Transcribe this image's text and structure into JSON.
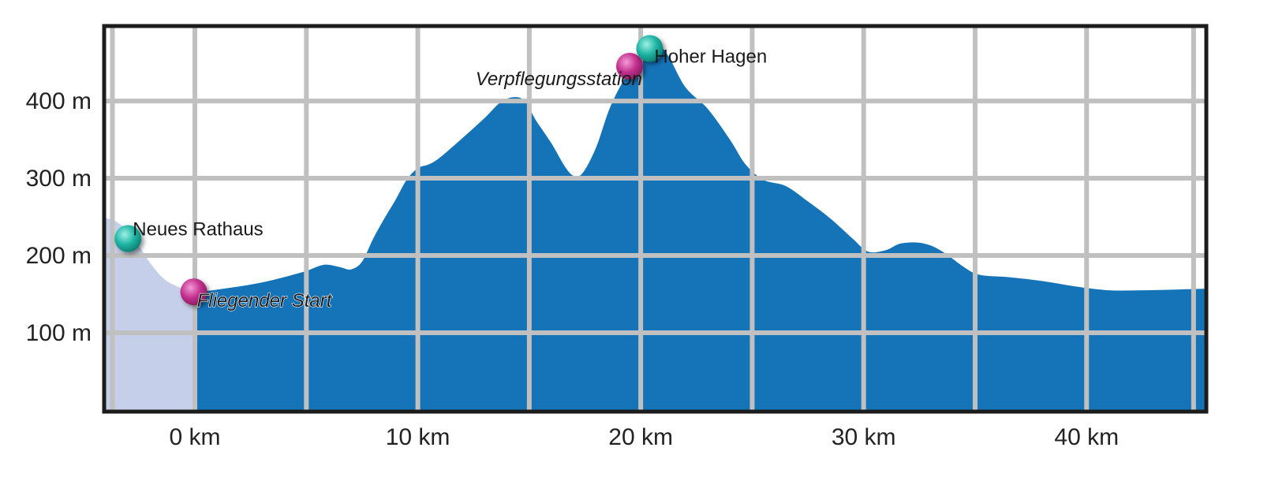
{
  "chart_data": {
    "type": "area",
    "title": "",
    "xlabel": "",
    "ylabel": "",
    "xlim": [
      -4,
      45.3
    ],
    "ylim": [
      0,
      495
    ],
    "grid": true,
    "legend": "none",
    "x_ticks": [
      {
        "value": 0,
        "label": "0 km"
      },
      {
        "value": 10,
        "label": "10 km"
      },
      {
        "value": 20,
        "label": "20 km"
      },
      {
        "value": 30,
        "label": "30 km"
      },
      {
        "value": 40,
        "label": "40 km"
      }
    ],
    "y_ticks": [
      {
        "value": 100,
        "label": "100 m"
      },
      {
        "value": 200,
        "label": "200 m"
      },
      {
        "value": 300,
        "label": "300 m"
      },
      {
        "value": 400,
        "label": "400 m"
      }
    ],
    "extra_vertical_gridlines": [
      -3.7,
      5,
      15,
      25,
      35,
      44.8
    ],
    "series": [
      {
        "role": "neutralized-section",
        "color": "#c5cfe9",
        "x_range": [
          -4,
          0
        ],
        "points": [
          {
            "x": -4,
            "y": 248
          },
          {
            "x": -3.6,
            "y": 245
          },
          {
            "x": -3,
            "y": 232
          },
          {
            "x": -2.5,
            "y": 212
          },
          {
            "x": -2,
            "y": 190
          },
          {
            "x": -1.4,
            "y": 170
          },
          {
            "x": -0.8,
            "y": 160
          },
          {
            "x": -0.3,
            "y": 155
          },
          {
            "x": 0,
            "y": 152
          }
        ]
      },
      {
        "role": "race-section",
        "color": "#1573b8",
        "x_range": [
          0,
          45.3
        ],
        "points": [
          {
            "x": 0,
            "y": 152
          },
          {
            "x": 1,
            "y": 156
          },
          {
            "x": 2,
            "y": 160
          },
          {
            "x": 3,
            "y": 165
          },
          {
            "x": 4,
            "y": 172
          },
          {
            "x": 5,
            "y": 180
          },
          {
            "x": 5.8,
            "y": 188
          },
          {
            "x": 6.5,
            "y": 185
          },
          {
            "x": 7,
            "y": 182
          },
          {
            "x": 7.5,
            "y": 192
          },
          {
            "x": 8,
            "y": 222
          },
          {
            "x": 8.5,
            "y": 248
          },
          {
            "x": 9,
            "y": 272
          },
          {
            "x": 9.5,
            "y": 298
          },
          {
            "x": 10,
            "y": 313
          },
          {
            "x": 10.5,
            "y": 318
          },
          {
            "x": 11,
            "y": 327
          },
          {
            "x": 12,
            "y": 352
          },
          {
            "x": 13,
            "y": 378
          },
          {
            "x": 13.7,
            "y": 398
          },
          {
            "x": 14.3,
            "y": 405
          },
          {
            "x": 14.8,
            "y": 400
          },
          {
            "x": 15.3,
            "y": 375
          },
          {
            "x": 16,
            "y": 345
          },
          {
            "x": 16.6,
            "y": 315
          },
          {
            "x": 17,
            "y": 303
          },
          {
            "x": 17.4,
            "y": 307
          },
          {
            "x": 18,
            "y": 340
          },
          {
            "x": 18.6,
            "y": 390
          },
          {
            "x": 19.3,
            "y": 430
          },
          {
            "x": 20,
            "y": 455
          },
          {
            "x": 20.6,
            "y": 475
          },
          {
            "x": 21.2,
            "y": 460
          },
          {
            "x": 22,
            "y": 418
          },
          {
            "x": 23,
            "y": 390
          },
          {
            "x": 24,
            "y": 350
          },
          {
            "x": 24.7,
            "y": 318
          },
          {
            "x": 25.5,
            "y": 298
          },
          {
            "x": 26.5,
            "y": 290
          },
          {
            "x": 27.5,
            "y": 270
          },
          {
            "x": 28.5,
            "y": 248
          },
          {
            "x": 29.5,
            "y": 222
          },
          {
            "x": 30.2,
            "y": 205
          },
          {
            "x": 31,
            "y": 207
          },
          {
            "x": 31.6,
            "y": 215
          },
          {
            "x": 32.3,
            "y": 217
          },
          {
            "x": 33,
            "y": 213
          },
          {
            "x": 33.7,
            "y": 202
          },
          {
            "x": 34.5,
            "y": 185
          },
          {
            "x": 35.2,
            "y": 175
          },
          {
            "x": 36.5,
            "y": 172
          },
          {
            "x": 38,
            "y": 167
          },
          {
            "x": 39.5,
            "y": 160
          },
          {
            "x": 41,
            "y": 155
          },
          {
            "x": 42.5,
            "y": 155
          },
          {
            "x": 44,
            "y": 156
          },
          {
            "x": 45.3,
            "y": 157
          }
        ]
      }
    ],
    "annotations": [
      {
        "label": "Neues Rathaus",
        "x": -3,
        "y": 222,
        "marker": "teal",
        "italic": false
      },
      {
        "label": "Fliegender Start",
        "x": -0.05,
        "y": 153,
        "marker": "magenta",
        "italic": true
      },
      {
        "label": "Verpflegungsstation",
        "x": 19.5,
        "y": 445,
        "marker": "magenta",
        "italic": true
      },
      {
        "label": "Hoher Hagen",
        "x": 20.4,
        "y": 468,
        "marker": "teal",
        "italic": false
      }
    ],
    "colors": {
      "race_fill": "#1573b8",
      "neutral_fill": "#c5cfe9",
      "grid": "#c0c0c0",
      "frame": "#1c1c1c",
      "marker_teal": "#1fb5a4",
      "marker_magenta": "#c3308f"
    }
  }
}
